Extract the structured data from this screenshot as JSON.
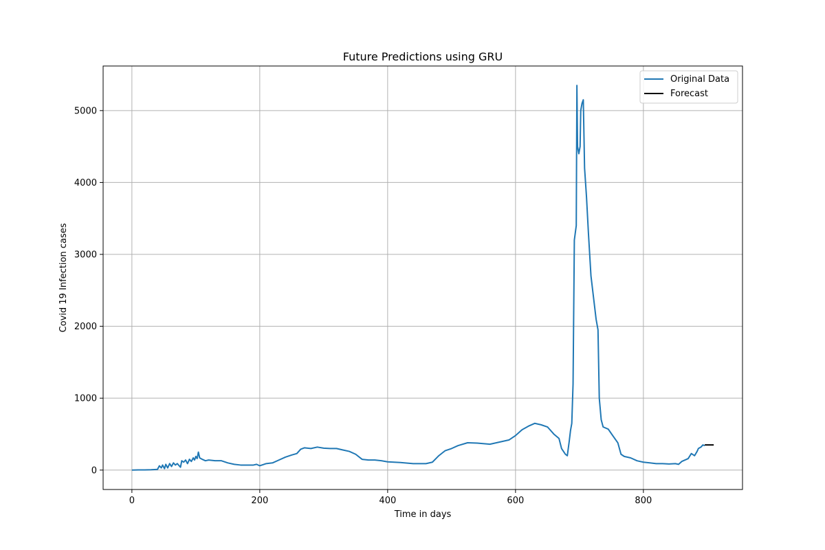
{
  "chart_data": {
    "type": "line",
    "title": "Future Predictions using GRU",
    "xlabel": "Time in days",
    "ylabel": "Covid 19 Infection cases",
    "xlim": [
      -45,
      955
    ],
    "ylim": [
      -270,
      5620
    ],
    "x_ticks": [
      0,
      200,
      400,
      600,
      800
    ],
    "y_ticks": [
      0,
      1000,
      2000,
      3000,
      4000,
      5000
    ],
    "grid": true,
    "legend_position": "top-right",
    "series": [
      {
        "name": "Original Data",
        "color": "#1f77b4",
        "points": [
          [
            0,
            0
          ],
          [
            10,
            2
          ],
          [
            20,
            3
          ],
          [
            30,
            5
          ],
          [
            40,
            10
          ],
          [
            43,
            60
          ],
          [
            46,
            30
          ],
          [
            48,
            70
          ],
          [
            51,
            20
          ],
          [
            53,
            80
          ],
          [
            56,
            30
          ],
          [
            59,
            90
          ],
          [
            62,
            50
          ],
          [
            65,
            100
          ],
          [
            68,
            70
          ],
          [
            71,
            90
          ],
          [
            74,
            60
          ],
          [
            76,
            40
          ],
          [
            78,
            130
          ],
          [
            81,
            110
          ],
          [
            84,
            140
          ],
          [
            87,
            90
          ],
          [
            90,
            150
          ],
          [
            93,
            120
          ],
          [
            96,
            170
          ],
          [
            98,
            140
          ],
          [
            100,
            190
          ],
          [
            102,
            160
          ],
          [
            104,
            250
          ],
          [
            106,
            170
          ],
          [
            110,
            150
          ],
          [
            115,
            130
          ],
          [
            120,
            140
          ],
          [
            130,
            130
          ],
          [
            140,
            130
          ],
          [
            150,
            100
          ],
          [
            160,
            80
          ],
          [
            170,
            70
          ],
          [
            180,
            70
          ],
          [
            190,
            70
          ],
          [
            195,
            80
          ],
          [
            200,
            60
          ],
          [
            210,
            90
          ],
          [
            220,
            100
          ],
          [
            230,
            140
          ],
          [
            240,
            180
          ],
          [
            250,
            210
          ],
          [
            258,
            230
          ],
          [
            264,
            290
          ],
          [
            270,
            310
          ],
          [
            280,
            300
          ],
          [
            290,
            320
          ],
          [
            300,
            305
          ],
          [
            310,
            300
          ],
          [
            320,
            300
          ],
          [
            330,
            280
          ],
          [
            340,
            260
          ],
          [
            350,
            220
          ],
          [
            360,
            150
          ],
          [
            370,
            140
          ],
          [
            380,
            140
          ],
          [
            390,
            130
          ],
          [
            400,
            115
          ],
          [
            420,
            105
          ],
          [
            440,
            90
          ],
          [
            460,
            90
          ],
          [
            470,
            110
          ],
          [
            480,
            200
          ],
          [
            490,
            270
          ],
          [
            500,
            300
          ],
          [
            510,
            340
          ],
          [
            525,
            380
          ],
          [
            540,
            375
          ],
          [
            560,
            360
          ],
          [
            575,
            390
          ],
          [
            590,
            420
          ],
          [
            600,
            480
          ],
          [
            610,
            560
          ],
          [
            620,
            610
          ],
          [
            630,
            650
          ],
          [
            640,
            630
          ],
          [
            650,
            600
          ],
          [
            660,
            500
          ],
          [
            668,
            440
          ],
          [
            672,
            300
          ],
          [
            678,
            220
          ],
          [
            681,
            200
          ],
          [
            684,
            400
          ],
          [
            686,
            550
          ],
          [
            688,
            650
          ],
          [
            690,
            1200
          ],
          [
            692,
            3200
          ],
          [
            695,
            3400
          ],
          [
            696,
            5350
          ],
          [
            697,
            4500
          ],
          [
            699,
            4400
          ],
          [
            701,
            4500
          ],
          [
            702,
            5000
          ],
          [
            704,
            5100
          ],
          [
            706,
            5150
          ],
          [
            708,
            4200
          ],
          [
            711,
            3800
          ],
          [
            714,
            3300
          ],
          [
            718,
            2700
          ],
          [
            722,
            2400
          ],
          [
            726,
            2100
          ],
          [
            729,
            1950
          ],
          [
            731,
            1000
          ],
          [
            734,
            700
          ],
          [
            737,
            600
          ],
          [
            745,
            570
          ],
          [
            752,
            480
          ],
          [
            760,
            380
          ],
          [
            765,
            220
          ],
          [
            770,
            190
          ],
          [
            780,
            170
          ],
          [
            790,
            130
          ],
          [
            800,
            110
          ],
          [
            810,
            100
          ],
          [
            820,
            90
          ],
          [
            830,
            90
          ],
          [
            840,
            85
          ],
          [
            850,
            90
          ],
          [
            855,
            80
          ],
          [
            860,
            120
          ],
          [
            870,
            160
          ],
          [
            875,
            230
          ],
          [
            880,
            200
          ],
          [
            884,
            260
          ],
          [
            886,
            300
          ],
          [
            890,
            320
          ],
          [
            893,
            350
          ],
          [
            896,
            340
          ]
        ]
      },
      {
        "name": "Forecast",
        "color": "#000000",
        "points": [
          [
            896,
            350
          ],
          [
            900,
            350
          ],
          [
            905,
            350
          ],
          [
            910,
            350
          ]
        ]
      }
    ]
  }
}
